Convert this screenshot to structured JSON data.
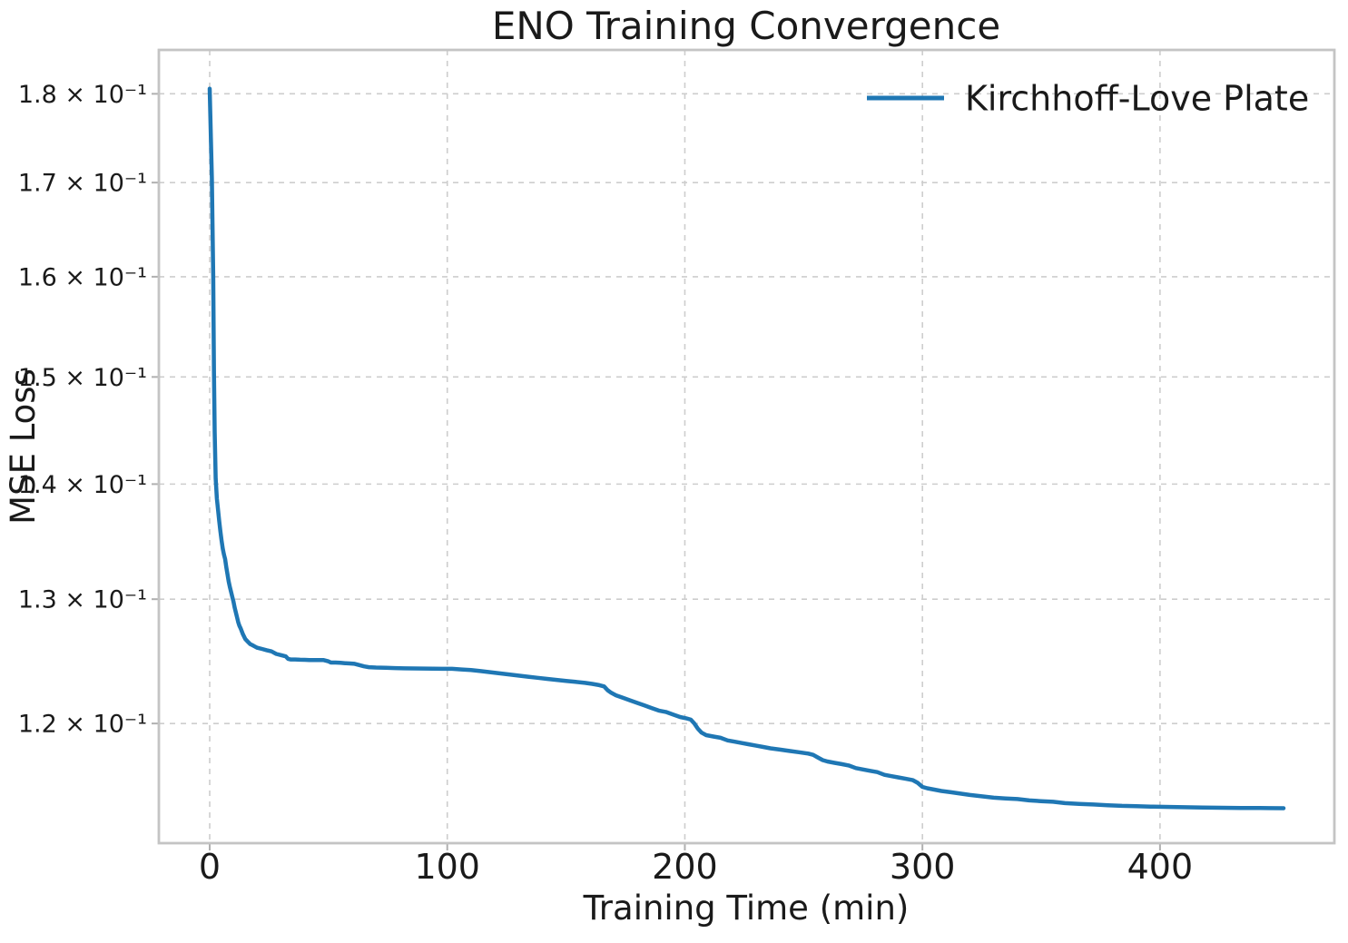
{
  "title": "ENO Training Convergence",
  "axes": {
    "xlabel": "Training Time (min)",
    "ylabel": "MSE Loss"
  },
  "legend": {
    "position": "upper right",
    "entries": [
      {
        "label": "Kirchhoff-Love Plate",
        "color": "#1f77b4"
      }
    ]
  },
  "colors": {
    "line": "#1f77b4",
    "grid": "#cdcdcd",
    "border": "#c4c4c4",
    "tick": "#b0b0b0",
    "text": "#1a1a1a",
    "background": "#ffffff"
  },
  "chart_data": {
    "type": "line",
    "title": "ENO Training Convergence",
    "xlabel": "Training Time (min)",
    "ylabel": "MSE Loss",
    "x_scale": "linear",
    "y_scale": "log",
    "grid": true,
    "grid_style": "dashed",
    "legend_position": "upper right",
    "xlim": [
      -21.4,
      473.4
    ],
    "ylim": [
      0.1111,
      0.18516
    ],
    "x_ticks": [
      {
        "value": 0,
        "label": "0"
      },
      {
        "value": 100,
        "label": "100"
      },
      {
        "value": 200,
        "label": "200"
      },
      {
        "value": 300,
        "label": "300"
      },
      {
        "value": 400,
        "label": "400"
      }
    ],
    "y_ticks": [
      {
        "value": 0.18,
        "label": "1.8 × 10⁻¹"
      },
      {
        "value": 0.17,
        "label": "1.7 × 10⁻¹"
      },
      {
        "value": 0.16,
        "label": "1.6 × 10⁻¹"
      },
      {
        "value": 0.15,
        "label": "1.5 × 10⁻¹"
      },
      {
        "value": 0.14,
        "label": "1.4 × 10⁻¹"
      },
      {
        "value": 0.13,
        "label": "1.3 × 10⁻¹"
      },
      {
        "value": 0.12,
        "label": "1.2 × 10⁻¹"
      }
    ],
    "series": [
      {
        "name": "Kirchhoff-Love Plate",
        "color": "#1f77b4",
        "points": [
          [
            0,
            0.1806
          ],
          [
            0.5,
            0.175
          ],
          [
            0.9,
            0.1705
          ],
          [
            1.2,
            0.1655
          ],
          [
            1.5,
            0.16
          ],
          [
            1.8,
            0.1505
          ],
          [
            2.1,
            0.1448
          ],
          [
            2.5,
            0.1405
          ],
          [
            3,
            0.1387
          ],
          [
            3.5,
            0.1377
          ],
          [
            4,
            0.1367
          ],
          [
            4.5,
            0.1358
          ],
          [
            5,
            0.135
          ],
          [
            5.5,
            0.1343
          ],
          [
            6,
            0.1338
          ],
          [
            6.5,
            0.1334
          ],
          [
            7,
            0.1327
          ],
          [
            7.5,
            0.1321
          ],
          [
            8,
            0.1315
          ],
          [
            8.5,
            0.131
          ],
          [
            9,
            0.1306
          ],
          [
            9.5,
            0.1302
          ],
          [
            10,
            0.1298
          ],
          [
            10.5,
            0.1293
          ],
          [
            11,
            0.1289
          ],
          [
            11.5,
            0.1285
          ],
          [
            12,
            0.1281
          ],
          [
            12.5,
            0.1278
          ],
          [
            13,
            0.1276
          ],
          [
            14,
            0.1271
          ],
          [
            15,
            0.1267
          ],
          [
            16,
            0.1265
          ],
          [
            17,
            0.1263
          ],
          [
            18,
            0.1262
          ],
          [
            19,
            0.1261
          ],
          [
            20,
            0.126
          ],
          [
            22,
            0.1259
          ],
          [
            24,
            0.1258
          ],
          [
            26,
            0.1257
          ],
          [
            28,
            0.1255
          ],
          [
            30,
            0.1254
          ],
          [
            32,
            0.1253
          ],
          [
            33,
            0.1251
          ],
          [
            34,
            0.12505
          ],
          [
            36,
            0.12505
          ],
          [
            38,
            0.12503
          ],
          [
            40,
            0.12502
          ],
          [
            42,
            0.12501
          ],
          [
            44,
            0.125
          ],
          [
            46,
            0.125
          ],
          [
            48,
            0.125
          ],
          [
            50,
            0.1249
          ],
          [
            51,
            0.1248
          ],
          [
            53,
            0.1248
          ],
          [
            55,
            0.12478
          ],
          [
            57,
            0.12475
          ],
          [
            59,
            0.12473
          ],
          [
            61,
            0.1247
          ],
          [
            63,
            0.1246
          ],
          [
            65,
            0.1245
          ],
          [
            67,
            0.12443
          ],
          [
            70,
            0.1244
          ],
          [
            74,
            0.12438
          ],
          [
            78,
            0.12436
          ],
          [
            82,
            0.12434
          ],
          [
            86,
            0.12433
          ],
          [
            90,
            0.12432
          ],
          [
            94,
            0.12431
          ],
          [
            98,
            0.1243
          ],
          [
            102,
            0.1243
          ],
          [
            106,
            0.12425
          ],
          [
            110,
            0.1242
          ],
          [
            114,
            0.12412
          ],
          [
            118,
            0.12403
          ],
          [
            122,
            0.12394
          ],
          [
            126,
            0.12385
          ],
          [
            130,
            0.12376
          ],
          [
            134,
            0.12367
          ],
          [
            138,
            0.12358
          ],
          [
            142,
            0.1235
          ],
          [
            146,
            0.12342
          ],
          [
            150,
            0.12334
          ],
          [
            154,
            0.12326
          ],
          [
            158,
            0.12318
          ],
          [
            161,
            0.1231
          ],
          [
            164,
            0.123
          ],
          [
            166,
            0.1229
          ],
          [
            167.5,
            0.1226
          ],
          [
            169,
            0.1224
          ],
          [
            171,
            0.1222
          ],
          [
            174,
            0.122
          ],
          [
            177,
            0.1218
          ],
          [
            180,
            0.1216
          ],
          [
            183,
            0.1214
          ],
          [
            186,
            0.1212
          ],
          [
            189,
            0.121
          ],
          [
            192,
            0.1209
          ],
          [
            195,
            0.1207
          ],
          [
            198,
            0.1205
          ],
          [
            200.5,
            0.1204
          ],
          [
            202.5,
            0.1203
          ],
          [
            204,
            0.12
          ],
          [
            205.5,
            0.1196
          ],
          [
            207,
            0.1193
          ],
          [
            209,
            0.1191
          ],
          [
            212,
            0.119
          ],
          [
            215,
            0.1189
          ],
          [
            218,
            0.1187
          ],
          [
            221,
            0.1186
          ],
          [
            224,
            0.1185
          ],
          [
            227,
            0.1184
          ],
          [
            230,
            0.1183
          ],
          [
            233,
            0.1182
          ],
          [
            236,
            0.1181
          ],
          [
            240,
            0.118
          ],
          [
            244,
            0.1179
          ],
          [
            248,
            0.1178
          ],
          [
            252,
            0.1177
          ],
          [
            254,
            0.1176
          ],
          [
            256,
            0.1174
          ],
          [
            258,
            0.1172
          ],
          [
            260,
            0.1171
          ],
          [
            263,
            0.117
          ],
          [
            266,
            0.1169
          ],
          [
            269,
            0.1168
          ],
          [
            272,
            0.1166
          ],
          [
            275,
            0.1165
          ],
          [
            278,
            0.1164
          ],
          [
            281,
            0.1163
          ],
          [
            284,
            0.1161
          ],
          [
            287,
            0.116
          ],
          [
            290,
            0.1159
          ],
          [
            293,
            0.1158
          ],
          [
            296,
            0.1157
          ],
          [
            298,
            0.1155
          ],
          [
            300,
            0.1152
          ],
          [
            302,
            0.1151
          ],
          [
            305,
            0.115
          ],
          [
            308,
            0.1149
          ],
          [
            312,
            0.1148
          ],
          [
            316,
            0.1147
          ],
          [
            320,
            0.1146
          ],
          [
            325,
            0.1145
          ],
          [
            330,
            0.1144
          ],
          [
            335,
            0.11435
          ],
          [
            340,
            0.1143
          ],
          [
            345,
            0.1142
          ],
          [
            350,
            0.11415
          ],
          [
            355,
            0.1141
          ],
          [
            360,
            0.114
          ],
          [
            366,
            0.11395
          ],
          [
            372,
            0.1139
          ],
          [
            378,
            0.11385
          ],
          [
            384,
            0.1138
          ],
          [
            390,
            0.11378
          ],
          [
            396,
            0.11375
          ],
          [
            402,
            0.11373
          ],
          [
            410,
            0.1137
          ],
          [
            418,
            0.11368
          ],
          [
            426,
            0.11366
          ],
          [
            434,
            0.11365
          ],
          [
            442,
            0.11364
          ],
          [
            452,
            0.11363
          ]
        ]
      }
    ]
  }
}
